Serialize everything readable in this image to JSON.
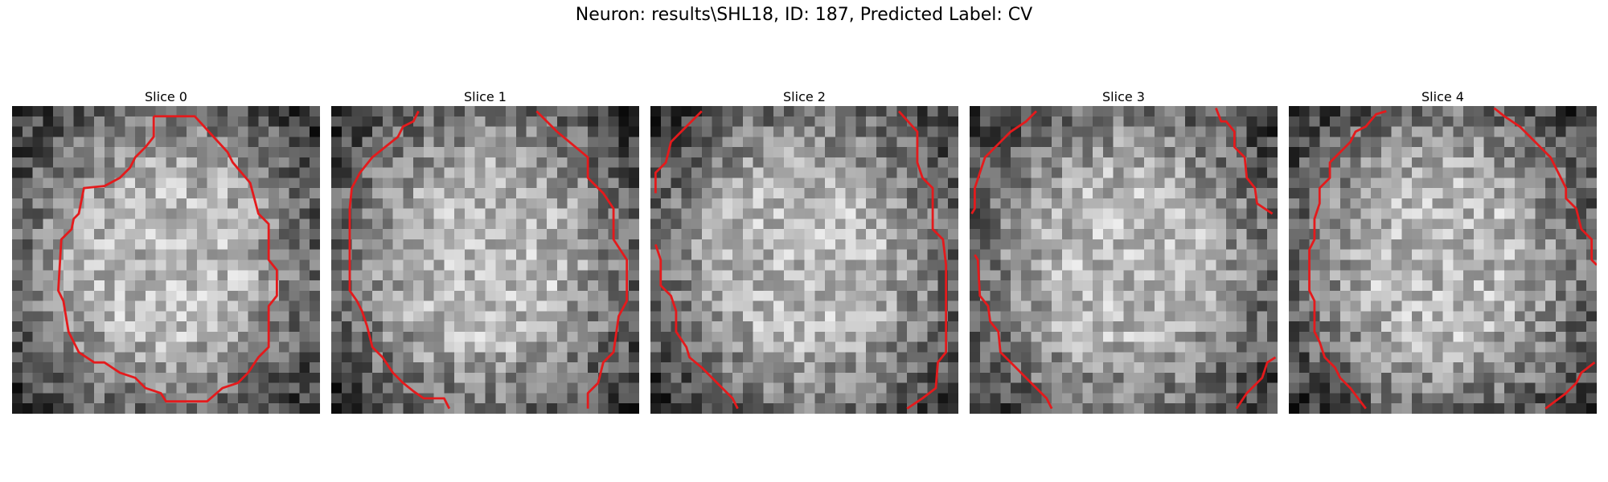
{
  "figure": {
    "title": "Neuron: results\\SHL18, ID: 187, Predicted Label: CV"
  },
  "colors": {
    "contour": "#e41a1c",
    "background": "#ffffff"
  },
  "slices": [
    {
      "title": "Slice 0",
      "seed": 11
    },
    {
      "title": "Slice 1",
      "seed": 23
    },
    {
      "title": "Slice 2",
      "seed": 37
    },
    {
      "title": "Slice 3",
      "seed": 51
    },
    {
      "title": "Slice 4",
      "seed": 67
    }
  ]
}
